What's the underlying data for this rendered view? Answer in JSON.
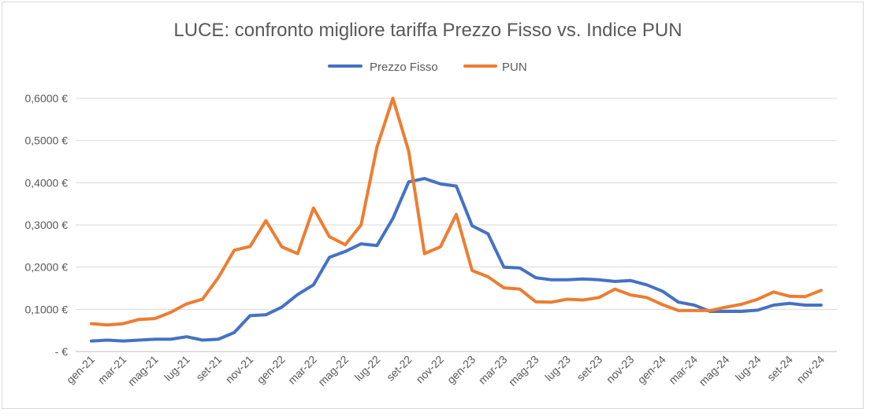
{
  "colors": {
    "fixed": "#4472C4",
    "pun": "#ED7D31"
  },
  "chart_data": {
    "type": "line",
    "title": "LUCE: confronto migliore tariffa Prezzo Fisso vs. Indice PUN",
    "xlabel": "",
    "ylabel": "",
    "ylim": [
      0,
      0.6
    ],
    "y_ticks": [
      {
        "value": 0,
        "label": "-   €"
      },
      {
        "value": 0.1,
        "label": "0,1000 €"
      },
      {
        "value": 0.2,
        "label": "0,2000 €"
      },
      {
        "value": 0.3,
        "label": "0,3000 €"
      },
      {
        "value": 0.4,
        "label": "0,4000 €"
      },
      {
        "value": 0.5,
        "label": "0,5000 €"
      },
      {
        "value": 0.6,
        "label": "0,6000 €"
      }
    ],
    "x_tick_labels": [
      "gen-21",
      "mar-21",
      "mag-21",
      "lug-21",
      "set-21",
      "nov-21",
      "gen-22",
      "mar-22",
      "mag-22",
      "lug-22",
      "set-22",
      "nov-22",
      "gen-23",
      "mar-23",
      "mag-23",
      "lug-23",
      "set-23",
      "nov-23",
      "gen-24",
      "mar-24",
      "mag-24",
      "lug-24",
      "set-24",
      "nov-24"
    ],
    "legend_position": "top",
    "series": [
      {
        "name": "Prezzo Fisso",
        "values": [
          0.025,
          0.027,
          0.025,
          0.027,
          0.029,
          0.029,
          0.035,
          0.027,
          0.029,
          0.045,
          0.085,
          0.087,
          0.105,
          0.135,
          0.158,
          0.223,
          0.237,
          0.255,
          0.251,
          0.315,
          0.402,
          0.41,
          0.397,
          0.392,
          0.298,
          0.279,
          0.2,
          0.198,
          0.175,
          0.17,
          0.17,
          0.172,
          0.17,
          0.166,
          0.168,
          0.158,
          0.143,
          0.117,
          0.11,
          0.095,
          0.095,
          0.095,
          0.098,
          0.11,
          0.114,
          0.11,
          0.11
        ]
      },
      {
        "name": "PUN",
        "values": [
          0.066,
          0.063,
          0.066,
          0.076,
          0.078,
          0.093,
          0.113,
          0.124,
          0.175,
          0.24,
          0.249,
          0.31,
          0.248,
          0.232,
          0.34,
          0.272,
          0.253,
          0.3,
          0.484,
          0.6,
          0.475,
          0.232,
          0.248,
          0.325,
          0.192,
          0.177,
          0.151,
          0.148,
          0.118,
          0.117,
          0.124,
          0.122,
          0.128,
          0.148,
          0.134,
          0.128,
          0.111,
          0.097,
          0.097,
          0.097,
          0.105,
          0.112,
          0.124,
          0.141,
          0.131,
          0.13,
          0.145
        ]
      }
    ]
  }
}
